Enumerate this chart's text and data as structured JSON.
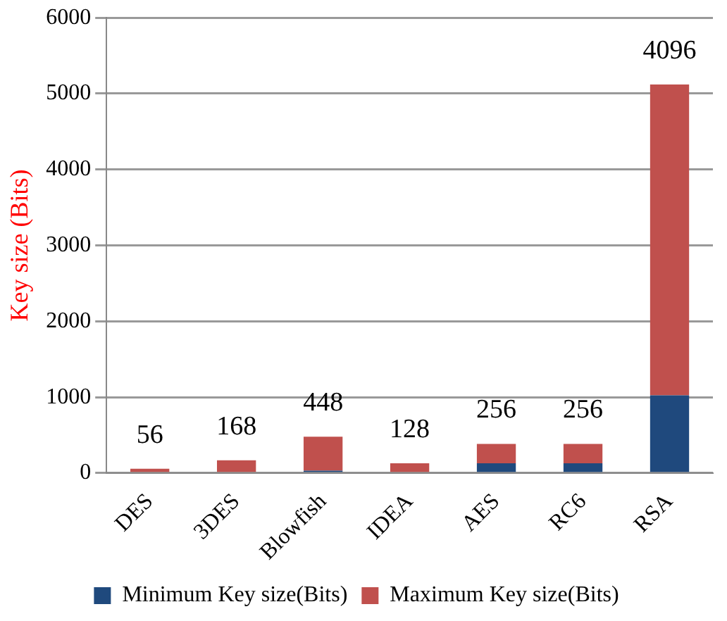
{
  "chart_data": {
    "type": "bar",
    "stacked": true,
    "ylabel": "Key size (Bits)",
    "categories": [
      "DES",
      "3DES",
      "Blowfish",
      "IDEA",
      "AES",
      "RC6",
      "RSA"
    ],
    "series": [
      {
        "name": "Minimum Key size(Bits)",
        "color": "#1f497d",
        "values": [
          0,
          0,
          32,
          0,
          128,
          128,
          1024
        ]
      },
      {
        "name": "Maximum Key size(Bits)",
        "color": "#c0504d",
        "values": [
          56,
          168,
          448,
          128,
          256,
          256,
          4096
        ],
        "value_labels": [
          "56",
          "168",
          "448",
          "128",
          "256",
          "256",
          "4096"
        ]
      }
    ],
    "ylim": [
      0,
      6000
    ],
    "yticks": [
      0,
      1000,
      2000,
      3000,
      4000,
      5000,
      6000
    ],
    "grid": "y",
    "legend": "bottom"
  }
}
